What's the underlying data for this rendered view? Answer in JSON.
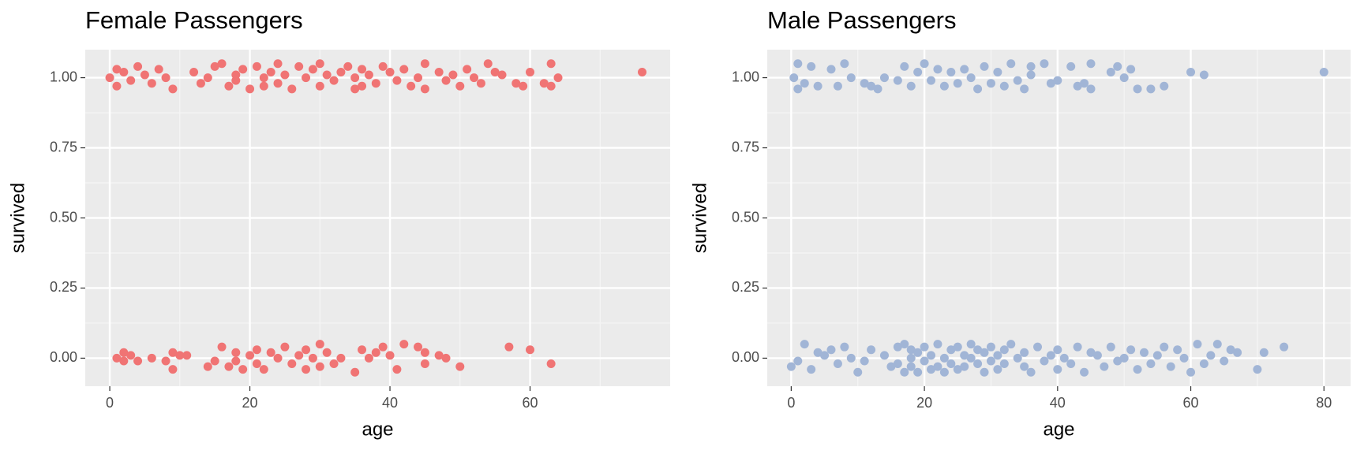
{
  "chart_data": [
    {
      "type": "scatter",
      "title": "Female Passengers",
      "x_label": "age",
      "y_label": "survived",
      "color": "#F07474",
      "grid": true,
      "xlim": [
        -3.5,
        80
      ],
      "ylim": [
        -0.1,
        1.1
      ],
      "xticks": [
        0,
        20,
        40,
        60
      ],
      "yticks": [
        {
          "value": 0,
          "label": "0.00"
        },
        {
          "value": 0.25,
          "label": "0.25"
        },
        {
          "value": 0.5,
          "label": "0.50"
        },
        {
          "value": 0.75,
          "label": "0.75"
        },
        {
          "value": 1,
          "label": "1.00"
        }
      ],
      "x": [
        0,
        1,
        1,
        2,
        3,
        4,
        5,
        6,
        7,
        8,
        9,
        12,
        13,
        14,
        15,
        16,
        17,
        18,
        18,
        19,
        20,
        21,
        22,
        22,
        23,
        24,
        24,
        25,
        26,
        27,
        28,
        29,
        30,
        30,
        31,
        32,
        33,
        34,
        35,
        35,
        36,
        36,
        37,
        38,
        39,
        40,
        41,
        42,
        43,
        44,
        45,
        45,
        47,
        48,
        49,
        50,
        51,
        52,
        53,
        54,
        55,
        56,
        58,
        59,
        60,
        62,
        63,
        63,
        64,
        76,
        1,
        2,
        2,
        3,
        4,
        6,
        8,
        9,
        9,
        10,
        11,
        14,
        15,
        16,
        17,
        18,
        18,
        19,
        20,
        21,
        21,
        22,
        23,
        24,
        25,
        26,
        27,
        28,
        28,
        29,
        30,
        30,
        31,
        32,
        33,
        35,
        36,
        37,
        38,
        39,
        40,
        41,
        42,
        44,
        45,
        45,
        47,
        48,
        50,
        57,
        60,
        63
      ],
      "values": [
        1.0,
        1.03,
        0.97,
        1.02,
        0.99,
        1.04,
        1.01,
        0.98,
        1.03,
        1.0,
        0.96,
        1.02,
        0.98,
        1.0,
        1.04,
        1.05,
        0.97,
        1.01,
        0.99,
        1.03,
        0.96,
        1.04,
        1.0,
        0.97,
        1.02,
        1.05,
        0.98,
        1.01,
        0.96,
        1.04,
        1.0,
        1.03,
        0.97,
        1.05,
        1.01,
        0.99,
        1.02,
        1.04,
        0.96,
        1.0,
        1.03,
        0.97,
        1.01,
        0.98,
        1.04,
        1.02,
        0.99,
        1.03,
        0.97,
        1.0,
        1.05,
        0.96,
        1.02,
        0.99,
        1.01,
        0.97,
        1.03,
        1.0,
        0.98,
        1.05,
        1.02,
        1.01,
        0.98,
        0.97,
        1.02,
        0.98,
        1.05,
        0.97,
        1.0,
        1.02,
        0.0,
        0.02,
        -0.01,
        0.01,
        -0.01,
        0.0,
        -0.01,
        -0.04,
        0.02,
        0.01,
        0.01,
        -0.03,
        -0.01,
        0.04,
        -0.03,
        0.02,
        -0.01,
        -0.04,
        0.01,
        -0.02,
        0.03,
        -0.04,
        0.02,
        0.0,
        0.04,
        -0.02,
        0.01,
        -0.04,
        0.03,
        0.0,
        0.05,
        -0.03,
        0.02,
        -0.02,
        0.0,
        -0.05,
        0.03,
        0.0,
        0.02,
        0.04,
        0.01,
        -0.04,
        0.05,
        0.04,
        -0.02,
        0.02,
        0.01,
        0.0,
        -0.03,
        0.04,
        0.03,
        -0.02
      ]
    },
    {
      "type": "scatter",
      "title": "Male Passengers",
      "x_label": "age",
      "y_label": "survived",
      "color": "#A1B5D6",
      "grid": true,
      "xlim": [
        -3.6,
        84
      ],
      "ylim": [
        -0.1,
        1.1
      ],
      "xticks": [
        0,
        20,
        40,
        60,
        80
      ],
      "yticks": [
        {
          "value": 0,
          "label": "0.00"
        },
        {
          "value": 0.25,
          "label": "0.25"
        },
        {
          "value": 0.5,
          "label": "0.50"
        },
        {
          "value": 0.75,
          "label": "0.75"
        },
        {
          "value": 1,
          "label": "1.00"
        }
      ],
      "x": [
        0.4,
        1,
        1,
        2,
        3,
        4,
        6,
        7,
        8,
        9,
        11,
        12,
        13,
        14,
        16,
        17,
        18,
        19,
        20,
        21,
        22,
        23,
        24,
        25,
        26,
        27,
        28,
        29,
        30,
        31,
        32,
        33,
        34,
        35,
        36,
        36,
        38,
        39,
        40,
        42,
        43,
        44,
        45,
        45,
        48,
        49,
        50,
        51,
        52,
        54,
        56,
        60,
        62,
        80,
        0,
        1,
        2,
        3,
        4,
        5,
        6,
        7,
        8,
        9,
        10,
        11,
        12,
        14,
        15,
        16,
        16,
        17,
        17,
        18,
        18,
        18,
        19,
        19,
        20,
        20,
        21,
        21,
        22,
        22,
        23,
        23,
        24,
        24,
        25,
        25,
        26,
        26,
        27,
        27,
        28,
        28,
        29,
        29,
        30,
        30,
        31,
        31,
        32,
        32,
        33,
        34,
        35,
        35,
        36,
        37,
        38,
        39,
        40,
        40,
        41,
        42,
        43,
        44,
        45,
        46,
        47,
        48,
        49,
        50,
        51,
        52,
        53,
        54,
        55,
        56,
        57,
        58,
        59,
        60,
        61,
        62,
        63,
        64,
        65,
        66,
        67,
        70,
        71,
        74
      ],
      "values": [
        1.0,
        1.05,
        0.96,
        0.98,
        1.04,
        0.97,
        1.03,
        0.97,
        1.05,
        1.0,
        0.98,
        0.97,
        0.96,
        1.0,
        0.99,
        1.04,
        0.97,
        1.02,
        1.05,
        0.99,
        1.03,
        0.97,
        1.02,
        0.98,
        1.03,
        1.0,
        0.96,
        1.04,
        0.98,
        1.02,
        0.97,
        1.05,
        0.99,
        0.96,
        1.04,
        1.01,
        1.05,
        0.98,
        0.99,
        1.04,
        0.97,
        0.98,
        1.05,
        0.96,
        1.02,
        1.04,
        1.0,
        1.03,
        0.96,
        0.96,
        0.97,
        1.02,
        1.01,
        1.02,
        -0.03,
        -0.01,
        0.05,
        -0.04,
        0.02,
        0.01,
        0.03,
        -0.02,
        0.04,
        0.0,
        -0.05,
        -0.01,
        0.03,
        0.01,
        -0.03,
        0.04,
        -0.02,
        0.05,
        -0.05,
        0.0,
        -0.03,
        0.03,
        0.02,
        -0.05,
        0.04,
        -0.01,
        0.01,
        -0.04,
        0.05,
        -0.03,
        0.0,
        -0.05,
        0.03,
        -0.02,
        0.04,
        -0.04,
        0.01,
        -0.03,
        0.05,
        0.0,
        -0.02,
        0.03,
        -0.05,
        0.02,
        0.04,
        -0.01,
        0.01,
        -0.04,
        0.03,
        -0.02,
        0.05,
        0.0,
        -0.03,
        0.02,
        -0.05,
        0.04,
        -0.01,
        0.01,
        -0.04,
        0.03,
        0.0,
        -0.02,
        0.04,
        -0.05,
        0.02,
        0.01,
        -0.03,
        0.04,
        -0.01,
        0.0,
        0.03,
        -0.04,
        0.02,
        -0.02,
        0.01,
        0.04,
        -0.03,
        0.03,
        0.0,
        -0.05,
        0.05,
        -0.02,
        0.01,
        0.05,
        -0.01,
        0.03,
        0.02,
        -0.04,
        0.02,
        0.04
      ]
    }
  ]
}
